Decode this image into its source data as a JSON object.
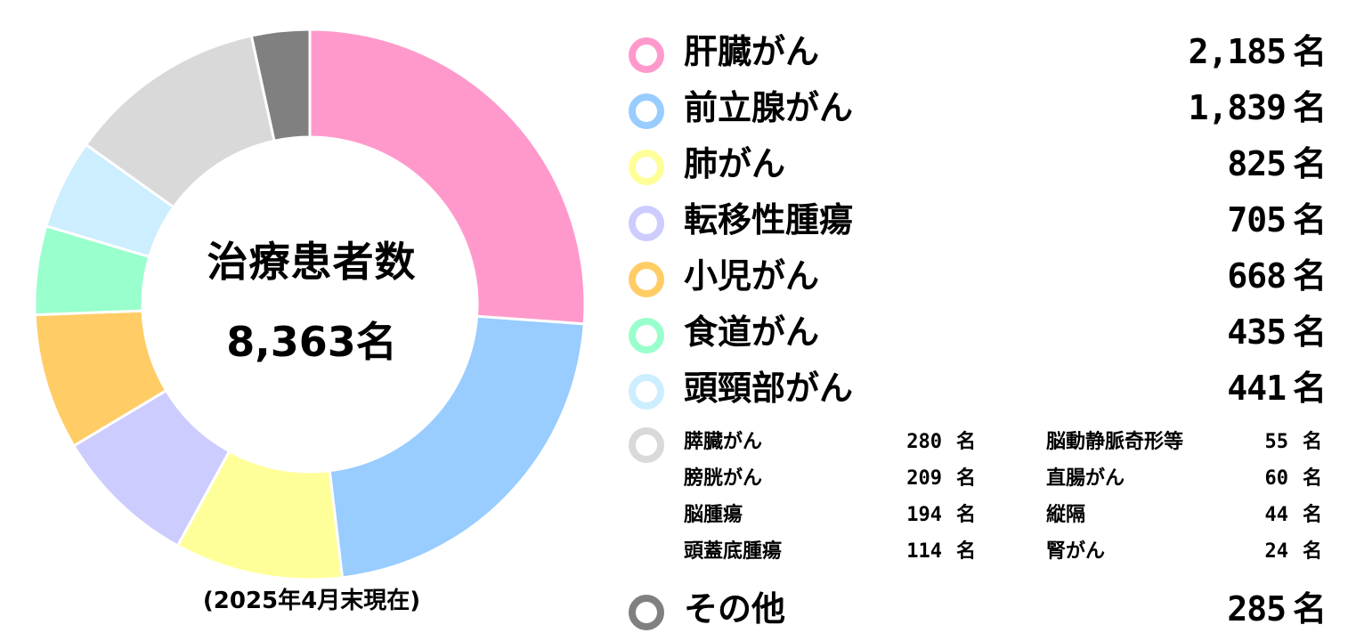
{
  "chart_data": {
    "type": "pie",
    "title": "治療患者数",
    "total": "8,363名",
    "note": "(2025年4月末現在)",
    "unit": "名",
    "colors": {
      "pink": "#ff99cc",
      "blue": "#99ccff",
      "yellow": "#ffff99",
      "lavender": "#ccccff",
      "orange": "#ffcc66",
      "green": "#99ffcc",
      "cyan": "#cceeff",
      "gray": "#d9d9d9",
      "darkgray": "#808080"
    },
    "slices": [
      {
        "label": "肝臓がん",
        "value": 2185,
        "display": "2,185",
        "color": "#ff99cc"
      },
      {
        "label": "前立腺がん",
        "value": 1839,
        "display": "1,839",
        "color": "#99ccff"
      },
      {
        "label": "肺がん",
        "value": 825,
        "display": "825",
        "color": "#ffff99"
      },
      {
        "label": "転移性腫瘍",
        "value": 705,
        "display": "705",
        "color": "#ccccff"
      },
      {
        "label": "小児がん",
        "value": 668,
        "display": "668",
        "color": "#ffcc66"
      },
      {
        "label": "食道がん",
        "value": 435,
        "display": "435",
        "color": "#99ffcc"
      },
      {
        "label": "頭頸部がん",
        "value": 441,
        "display": "441",
        "color": "#cceeff"
      },
      {
        "label": "others_group",
        "value": 980,
        "display": "",
        "color": "#d9d9d9"
      },
      {
        "label": "その他",
        "value": 285,
        "display": "285",
        "color": "#808080"
      }
    ],
    "sub_items": [
      {
        "label": "膵臓がん",
        "value": "280"
      },
      {
        "label": "膀胱がん",
        "value": "209"
      },
      {
        "label": "脳腫瘍",
        "value": "194"
      },
      {
        "label": "頭蓋底腫瘍",
        "value": "114"
      },
      {
        "label": "脳動静脈奇形等",
        "value": "55"
      },
      {
        "label": "直腸がん",
        "value": "60"
      },
      {
        "label": "縦隔",
        "value": "44"
      },
      {
        "label": "腎がん",
        "value": "24"
      }
    ]
  }
}
